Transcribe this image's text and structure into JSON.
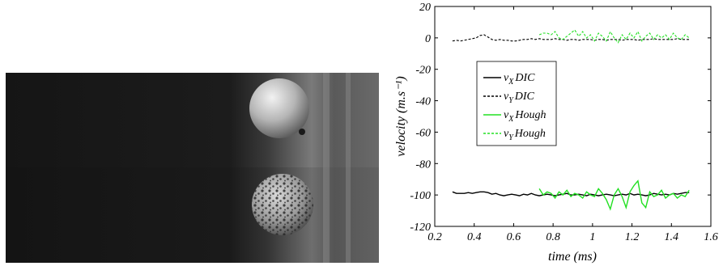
{
  "photo": {
    "description_icon": "high-speed-camera-frames-icon"
  },
  "chart_data": {
    "type": "line",
    "xlabel": "time (ms)",
    "ylabel": "velocity (m.s⁻¹)",
    "xlim": [
      0.2,
      1.6
    ],
    "ylim": [
      -120,
      20
    ],
    "xticks": [
      0.2,
      0.4,
      0.6,
      0.8,
      1,
      1.2,
      1.4,
      1.6
    ],
    "yticks": [
      20,
      0,
      -20,
      -40,
      -60,
      -80,
      -100,
      -120
    ],
    "legend_position": "left-middle",
    "grid": false,
    "series": [
      {
        "name": "vX DIC",
        "sym": "v",
        "sub": "X",
        "method": "DIC",
        "color": "#000000",
        "dash": "solid",
        "x": [
          0.29,
          0.31,
          0.33,
          0.35,
          0.37,
          0.39,
          0.41,
          0.43,
          0.45,
          0.47,
          0.49,
          0.51,
          0.53,
          0.55,
          0.57,
          0.59,
          0.61,
          0.63,
          0.65,
          0.67,
          0.69,
          0.71,
          0.73,
          0.75,
          0.77,
          0.79,
          0.81,
          0.83,
          0.85,
          0.87,
          0.89,
          0.91,
          0.93,
          0.95,
          0.97,
          0.99,
          1.01,
          1.03,
          1.05,
          1.07,
          1.09,
          1.11,
          1.13,
          1.15,
          1.17,
          1.19,
          1.21,
          1.23,
          1.25,
          1.27,
          1.29,
          1.31,
          1.33,
          1.35,
          1.37,
          1.39,
          1.41,
          1.43,
          1.45,
          1.47,
          1.49
        ],
        "y": [
          -98,
          -99,
          -99,
          -99,
          -98.5,
          -99,
          -98.5,
          -98,
          -98,
          -98.5,
          -99.5,
          -99,
          -100,
          -100.5,
          -100,
          -99.5,
          -100,
          -100.5,
          -99.5,
          -100,
          -99,
          -100,
          -100.5,
          -100,
          -99.5,
          -100,
          -100.5,
          -100,
          -99.5,
          -99,
          -100,
          -100,
          -99.5,
          -100,
          -100.5,
          -99.5,
          -100,
          -100.5,
          -100,
          -99.5,
          -100,
          -100.5,
          -100,
          -99.5,
          -100,
          -99,
          -100,
          -99.5,
          -100,
          -100.5,
          -100,
          -99,
          -99.5,
          -100,
          -99.5,
          -100,
          -99,
          -99.5,
          -99,
          -98.5,
          -98.5
        ]
      },
      {
        "name": "vY DIC",
        "sym": "v",
        "sub": "Y",
        "method": "DIC",
        "color": "#000000",
        "dash": "dashed",
        "x": [
          0.29,
          0.31,
          0.33,
          0.35,
          0.37,
          0.39,
          0.41,
          0.43,
          0.45,
          0.47,
          0.49,
          0.51,
          0.53,
          0.55,
          0.57,
          0.59,
          0.61,
          0.63,
          0.65,
          0.67,
          0.69,
          0.71,
          0.73,
          0.75,
          0.77,
          0.79,
          0.81,
          0.83,
          0.85,
          0.87,
          0.89,
          0.91,
          0.93,
          0.95,
          0.97,
          0.99,
          1.01,
          1.03,
          1.05,
          1.07,
          1.09,
          1.11,
          1.13,
          1.15,
          1.17,
          1.19,
          1.21,
          1.23,
          1.25,
          1.27,
          1.29,
          1.31,
          1.33,
          1.35,
          1.37,
          1.39,
          1.41,
          1.43,
          1.45,
          1.47,
          1.49
        ],
        "y": [
          -2,
          -1.5,
          -2,
          -1.5,
          -1,
          -0.5,
          0,
          1.5,
          2,
          0.5,
          -1,
          -1.5,
          -1,
          -1.5,
          -1.5,
          -2,
          -2,
          -1.5,
          -1,
          -1,
          -0.5,
          -1,
          -0.5,
          -1,
          -1,
          -1,
          -0.5,
          -1,
          -1,
          -1.5,
          -1,
          -1,
          -1.5,
          -1,
          -1,
          -1,
          -1.5,
          -1,
          -1,
          -1.5,
          -1,
          -1,
          -1,
          -1.5,
          -1,
          -1,
          -1,
          -1.5,
          -1,
          -1,
          -1,
          -0.5,
          -1,
          -1,
          -1,
          -1,
          -1,
          -0.5,
          -1,
          -1,
          -1
        ]
      },
      {
        "name": "vX Hough",
        "sym": "v",
        "sub": "X",
        "method": "Hough",
        "color": "#22e022",
        "dash": "solid",
        "x": [
          0.73,
          0.75,
          0.77,
          0.79,
          0.81,
          0.83,
          0.85,
          0.87,
          0.89,
          0.91,
          0.93,
          0.95,
          0.97,
          0.99,
          1.01,
          1.03,
          1.05,
          1.07,
          1.09,
          1.11,
          1.13,
          1.15,
          1.17,
          1.19,
          1.21,
          1.23,
          1.25,
          1.27,
          1.29,
          1.31,
          1.33,
          1.35,
          1.37,
          1.39,
          1.41,
          1.43,
          1.45,
          1.47,
          1.49
        ],
        "y": [
          -96,
          -100,
          -98,
          -99,
          -102,
          -98,
          -100,
          -97,
          -101,
          -99,
          -100,
          -102,
          -98,
          -100,
          -101,
          -96,
          -99,
          -103,
          -109,
          -100,
          -96,
          -101,
          -108,
          -98,
          -94,
          -91,
          -105,
          -108,
          -98,
          -101,
          -100,
          -97,
          -102,
          -100,
          -99,
          -102,
          -100,
          -101,
          -97
        ]
      },
      {
        "name": "vY Hough",
        "sym": "v",
        "sub": "Y",
        "method": "Hough",
        "color": "#22e022",
        "dash": "dashed",
        "x": [
          0.73,
          0.75,
          0.77,
          0.79,
          0.81,
          0.83,
          0.85,
          0.87,
          0.89,
          0.91,
          0.93,
          0.95,
          0.97,
          0.99,
          1.01,
          1.03,
          1.05,
          1.07,
          1.09,
          1.11,
          1.13,
          1.15,
          1.17,
          1.19,
          1.21,
          1.23,
          1.25,
          1.27,
          1.29,
          1.31,
          1.33,
          1.35,
          1.37,
          1.39,
          1.41,
          1.43,
          1.45,
          1.47,
          1.49
        ],
        "y": [
          2,
          3,
          3,
          2,
          4,
          0,
          -1,
          1,
          3,
          5,
          1,
          4,
          0,
          2,
          -2,
          3,
          1,
          -2,
          4,
          0,
          -3,
          2,
          -1,
          3,
          0,
          4,
          -2,
          1,
          3,
          -1,
          2,
          0,
          2,
          -1,
          3,
          0,
          -1,
          2,
          0
        ]
      }
    ]
  }
}
